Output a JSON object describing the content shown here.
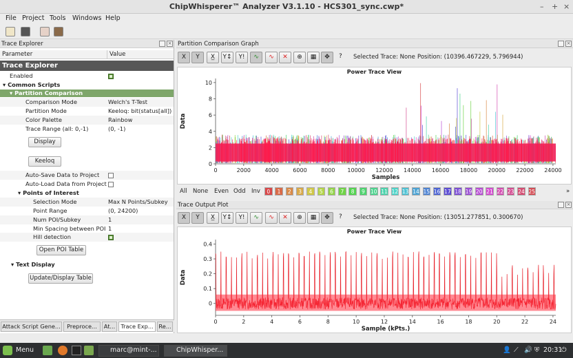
{
  "window": {
    "title": "ChipWhisperer™ Analyzer V3.1.10 - HCS301_sync.cwp*",
    "minimize": "–",
    "maximize": "+",
    "close": "×"
  },
  "menu": [
    "File",
    "Project",
    "Tools",
    "Windows",
    "Help"
  ],
  "toolbar_icons": [
    "folder-open-icon",
    "save-icon",
    "scope-icon",
    "capture-icon"
  ],
  "left_panel": {
    "header": "Trace Explorer",
    "col_param": "Parameter",
    "col_value": "Value",
    "section": "Trace Explorer",
    "enabled_label": "Enabled",
    "common_scripts": "Common Scripts",
    "partition_comparison": "Partition Comparison",
    "rows": [
      {
        "k": "Comparison Mode",
        "v": "Welch's T-Test"
      },
      {
        "k": "Partition Mode",
        "v": "Keeloq: bit(status[all])"
      },
      {
        "k": "Color Palette",
        "v": "Rainbow"
      },
      {
        "k": "Trace Range (all: 0,-1)",
        "v": "(0, -1)"
      }
    ],
    "display_btn": "Display",
    "keeloq_btn": "Keeloq",
    "autosave": "Auto-Save Data to Project",
    "autoload": "Auto-Load Data from Project",
    "poi": "Points of Interest",
    "poi_rows": [
      {
        "k": "Selection Mode",
        "v": "Max N Points/Subkey"
      },
      {
        "k": "Point Range",
        "v": "(0, 24200)"
      },
      {
        "k": "Num POI/Subkey",
        "v": "1"
      },
      {
        "k": "Min Spacing between POI",
        "v": "1"
      }
    ],
    "hill": "Hill detection",
    "open_poi_btn": "Open POI Table",
    "text_display": "Text Display",
    "update_btn": "Update/Display Table",
    "tabs": [
      "Attack Script Gene...",
      "Preproce...",
      "At...",
      "Trace Exp...",
      "Re..."
    ]
  },
  "top_graph": {
    "header": "Partition Comparison Graph",
    "status": "Selected Trace: None",
    "position": "Position: (10396.467229, 5.796944)",
    "chart_title": "Power Trace View",
    "xlabel": "Samples",
    "ylabel": "Data"
  },
  "trace_select": {
    "words": [
      "All",
      "None",
      "Even",
      "Odd",
      "Inv"
    ],
    "numbers": [
      "0",
      "1",
      "2",
      "3",
      "4",
      "5",
      "6",
      "7",
      "8",
      "9",
      "10",
      "11",
      "12",
      "13",
      "14",
      "15",
      "16",
      "17",
      "18",
      "19",
      "20",
      "21",
      "22",
      "23",
      "24",
      "25"
    ],
    "colors": [
      "#d9484a",
      "#d96a48",
      "#d98a48",
      "#d9a948",
      "#d1c848",
      "#b3d448",
      "#93d448",
      "#70d448",
      "#55d452",
      "#4dd46e",
      "#4dd48e",
      "#4dd4ad",
      "#4dd4c9",
      "#4dc2d4",
      "#4da3d4",
      "#4d83d4",
      "#4d64d4",
      "#5c4dd4",
      "#7b4dd4",
      "#9a4dd4",
      "#b84dd4",
      "#d44dd1",
      "#d44db2",
      "#d44d92",
      "#d44d72",
      "#d44d55"
    ],
    "more": "»"
  },
  "bottom_graph": {
    "header": "Trace Output Plot",
    "status": "Selected Trace: None",
    "position": "Position: (13051.277851, 0.300670)",
    "chart_title": "Power Trace View",
    "xlabel": "Sample (kPts.)",
    "ylabel": "Data"
  },
  "taskbar": {
    "menu": "Menu",
    "terminal": "marc@mint-...",
    "app": "ChipWhisper...",
    "clock": "20:31"
  },
  "chart_data": [
    {
      "type": "line",
      "title": "Power Trace View",
      "xlabel": "Samples",
      "ylabel": "Data",
      "xlim": [
        0,
        24200
      ],
      "ylim": [
        0,
        10.5
      ],
      "xticks": [
        0,
        2000,
        4000,
        6000,
        8000,
        10000,
        12000,
        14000,
        16000,
        18000,
        20000,
        22000,
        24000
      ],
      "yticks": [
        0,
        2,
        4,
        6,
        8,
        10
      ],
      "series": [
        {
          "values_summary": "dense multi-color noise band 0–3, peaks up to 10 near 14000–20000"
        }
      ]
    },
    {
      "type": "line",
      "title": "Power Trace View",
      "xlabel": "Sample (kPts.)",
      "ylabel": "Data",
      "xlim": [
        0,
        24.2
      ],
      "ylim": [
        -0.08,
        0.43
      ],
      "xticks": [
        0,
        2,
        4,
        6,
        8,
        10,
        12,
        14,
        16,
        18,
        20,
        22,
        24
      ],
      "yticks": [
        0,
        0.1,
        0.2,
        0.3,
        0.4
      ],
      "series": [
        {
          "values_summary": "periodic red power trace, baseline ~0, periodic spikes to ~0.33–0.35"
        }
      ]
    }
  ]
}
